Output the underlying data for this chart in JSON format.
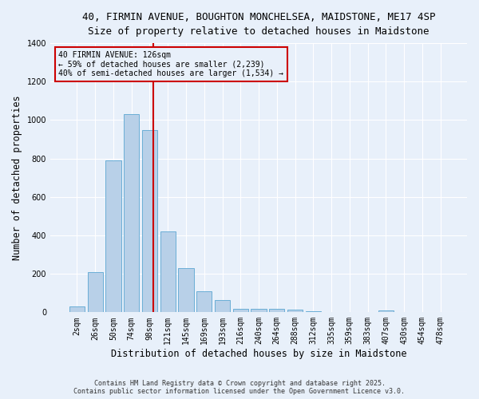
{
  "title_line1": "40, FIRMIN AVENUE, BOUGHTON MONCHELSEA, MAIDSTONE, ME17 4SP",
  "title_line2": "Size of property relative to detached houses in Maidstone",
  "xlabel": "Distribution of detached houses by size in Maidstone",
  "ylabel": "Number of detached properties",
  "categories": [
    "2sqm",
    "26sqm",
    "50sqm",
    "74sqm",
    "98sqm",
    "121sqm",
    "145sqm",
    "169sqm",
    "193sqm",
    "216sqm",
    "240sqm",
    "264sqm",
    "288sqm",
    "312sqm",
    "335sqm",
    "359sqm",
    "383sqm",
    "407sqm",
    "430sqm",
    "454sqm",
    "478sqm"
  ],
  "values": [
    30,
    210,
    790,
    1030,
    950,
    420,
    230,
    110,
    65,
    20,
    20,
    20,
    15,
    5,
    0,
    0,
    0,
    10,
    0,
    0,
    0
  ],
  "bar_color": "#b8d0e8",
  "bar_edge_color": "#6aaed6",
  "background_color": "#e8f0fa",
  "grid_color": "#ffffff",
  "vline_color": "#cc0000",
  "vline_pos": 4.2,
  "annotation_text": "40 FIRMIN AVENUE: 126sqm\n← 59% of detached houses are smaller (2,239)\n40% of semi-detached houses are larger (1,534) →",
  "annotation_box_color": "#cc0000",
  "ylim": [
    0,
    1400
  ],
  "yticks": [
    0,
    200,
    400,
    600,
    800,
    1000,
    1200,
    1400
  ],
  "footnote": "Contains HM Land Registry data © Crown copyright and database right 2025.\nContains public sector information licensed under the Open Government Licence v3.0.",
  "title_fontsize": 9,
  "tick_fontsize": 7,
  "label_fontsize": 8.5,
  "annot_fontsize": 7,
  "footnote_fontsize": 6
}
